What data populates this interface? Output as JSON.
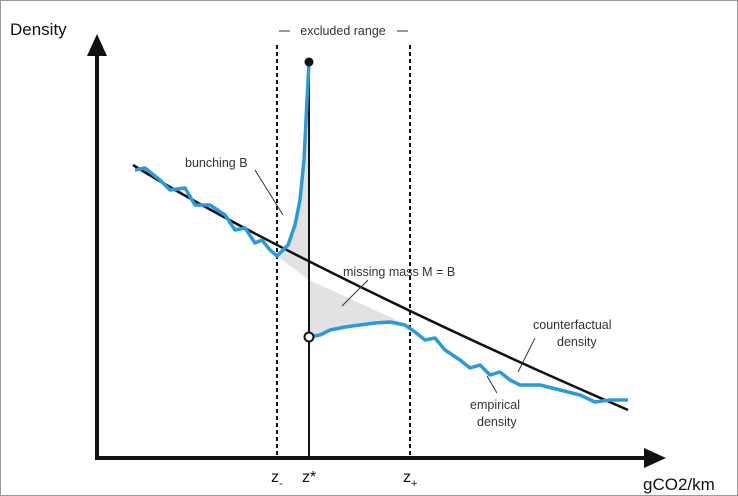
{
  "axes": {
    "y_label": "Density",
    "x_label": "gCO2/km"
  },
  "annotations": {
    "excluded_range": "excluded range",
    "bunching": "bunching B",
    "missing_mass": "missing mass M = B",
    "counterfactual": [
      "counterfactual",
      "density"
    ],
    "empirical": [
      "empirical",
      "density"
    ]
  },
  "markers": {
    "z_minus": {
      "base": "z",
      "sub": "-"
    },
    "z_star": "z*",
    "z_plus": {
      "base": "z",
      "sub": "+"
    }
  }
}
